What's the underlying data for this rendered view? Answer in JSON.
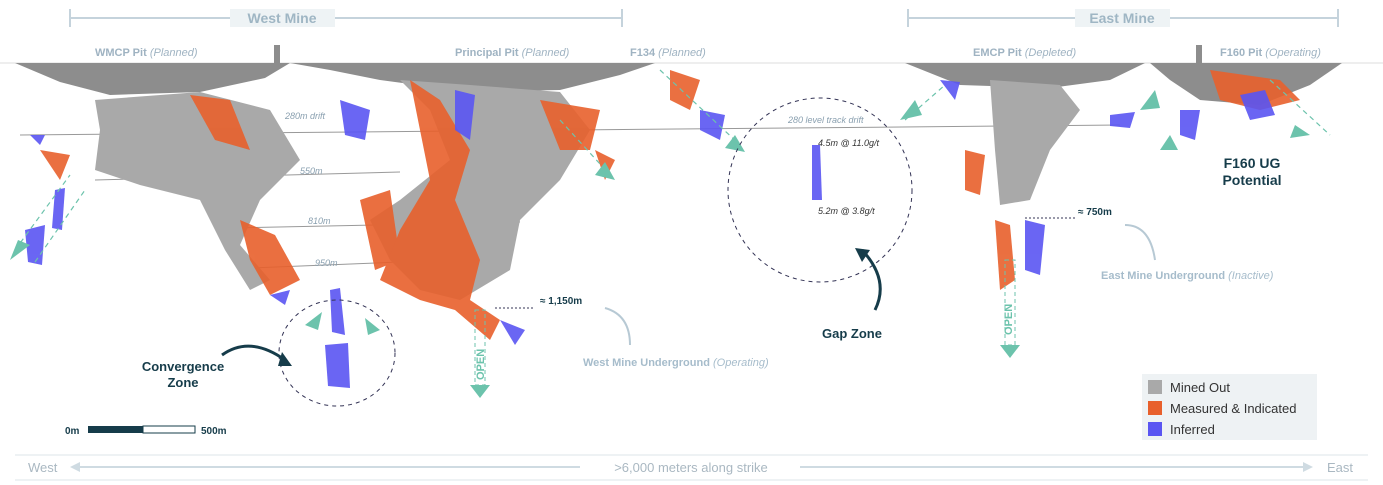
{
  "headers": {
    "west": "West Mine",
    "east": "East Mine"
  },
  "pits": [
    {
      "name": "WMCP Pit",
      "status": "(Planned)"
    },
    {
      "name": "Principal Pit",
      "status": "(Planned)"
    },
    {
      "name": "F134",
      "status": "(Planned)"
    },
    {
      "name": "EMCP Pit",
      "status": "(Depleted)"
    },
    {
      "name": "F160 Pit",
      "status": "(Operating)"
    }
  ],
  "levels": [
    "280m drift",
    "550m",
    "810m",
    "950m",
    "280 level track drift"
  ],
  "intercepts": [
    "4.5m @ 11.0g/t",
    "5.2m @ 3.8g/t"
  ],
  "zones": {
    "gap": "Gap Zone",
    "convergence": [
      "Convergence",
      "Zone"
    ],
    "f160": [
      "F160 UG",
      "Potential"
    ]
  },
  "underground": [
    {
      "distance": "≈ 1,150m",
      "name": "West Mine Underground",
      "status": "(Operating)"
    },
    {
      "distance": "≈ 750m",
      "name": "East Mine Underground",
      "status": "(Inactive)"
    }
  ],
  "open_labels": [
    "OPEN",
    "OPEN"
  ],
  "scale_bar": {
    "start": "0m",
    "end": "500m"
  },
  "legend": [
    "Mined Out",
    "Measured & Indicated",
    "Inferred"
  ],
  "strike": {
    "left": "West",
    "center": ">6,000 meters along strike",
    "right": "East"
  }
}
